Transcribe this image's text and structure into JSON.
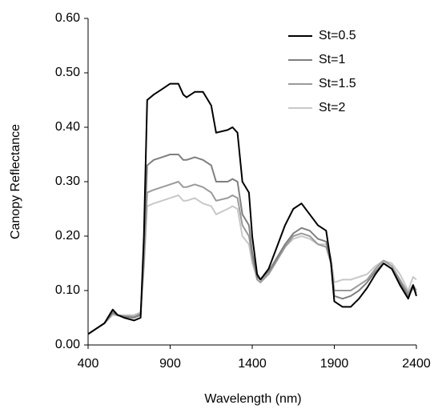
{
  "chart_data": {
    "type": "line",
    "xlabel": "Wavelength (nm)",
    "ylabel": "Canopy Reflectance",
    "x": [
      400,
      450,
      500,
      550,
      580,
      620,
      680,
      720,
      740,
      760,
      800,
      850,
      900,
      950,
      980,
      1000,
      1050,
      1100,
      1150,
      1180,
      1250,
      1280,
      1310,
      1340,
      1380,
      1400,
      1430,
      1450,
      1500,
      1550,
      1600,
      1650,
      1700,
      1750,
      1800,
      1850,
      1880,
      1900,
      1950,
      2000,
      2050,
      2100,
      2150,
      2200,
      2250,
      2300,
      2350,
      2380,
      2400
    ],
    "series": [
      {
        "name": "St=0.5",
        "color": "#000000",
        "values": [
          0.02,
          0.03,
          0.04,
          0.065,
          0.055,
          0.05,
          0.045,
          0.05,
          0.2,
          0.45,
          0.46,
          0.47,
          0.48,
          0.48,
          0.46,
          0.455,
          0.465,
          0.465,
          0.44,
          0.39,
          0.395,
          0.4,
          0.39,
          0.3,
          0.28,
          0.2,
          0.13,
          0.12,
          0.14,
          0.18,
          0.22,
          0.25,
          0.26,
          0.24,
          0.22,
          0.21,
          0.15,
          0.08,
          0.07,
          0.07,
          0.085,
          0.105,
          0.13,
          0.15,
          0.14,
          0.11,
          0.085,
          0.11,
          0.09
        ]
      },
      {
        "name": "St=1",
        "color": "#7f7f7f",
        "values": [
          0.02,
          0.03,
          0.04,
          0.06,
          0.055,
          0.052,
          0.05,
          0.055,
          0.17,
          0.33,
          0.34,
          0.345,
          0.35,
          0.35,
          0.34,
          0.34,
          0.345,
          0.34,
          0.33,
          0.3,
          0.3,
          0.305,
          0.3,
          0.24,
          0.22,
          0.17,
          0.125,
          0.12,
          0.135,
          0.16,
          0.185,
          0.205,
          0.215,
          0.21,
          0.195,
          0.19,
          0.15,
          0.09,
          0.085,
          0.09,
          0.1,
          0.115,
          0.135,
          0.15,
          0.14,
          0.115,
          0.09,
          0.105,
          0.095
        ]
      },
      {
        "name": "St=1.5",
        "color": "#9a9a9a",
        "values": [
          0.02,
          0.03,
          0.04,
          0.058,
          0.055,
          0.053,
          0.052,
          0.058,
          0.15,
          0.28,
          0.285,
          0.29,
          0.295,
          0.3,
          0.29,
          0.29,
          0.295,
          0.29,
          0.28,
          0.265,
          0.27,
          0.275,
          0.27,
          0.22,
          0.2,
          0.16,
          0.12,
          0.115,
          0.13,
          0.155,
          0.18,
          0.2,
          0.205,
          0.2,
          0.185,
          0.18,
          0.15,
          0.1,
          0.1,
          0.1,
          0.11,
          0.12,
          0.14,
          0.155,
          0.145,
          0.12,
          0.095,
          0.11,
          0.1
        ]
      },
      {
        "name": "St=2",
        "color": "#c8c8c8",
        "values": [
          0.02,
          0.03,
          0.04,
          0.055,
          0.054,
          0.055,
          0.055,
          0.06,
          0.14,
          0.255,
          0.26,
          0.265,
          0.27,
          0.275,
          0.265,
          0.265,
          0.27,
          0.26,
          0.255,
          0.24,
          0.25,
          0.255,
          0.25,
          0.2,
          0.185,
          0.15,
          0.125,
          0.12,
          0.13,
          0.155,
          0.18,
          0.195,
          0.2,
          0.195,
          0.185,
          0.185,
          0.16,
          0.115,
          0.12,
          0.12,
          0.125,
          0.13,
          0.145,
          0.155,
          0.15,
          0.13,
          0.1,
          0.125,
          0.12
        ]
      }
    ],
    "xlim": [
      400,
      2400
    ],
    "xticks": [
      400,
      900,
      1400,
      1900,
      2400
    ],
    "ylim": [
      0,
      0.6
    ],
    "yticks": [
      {
        "value": 0,
        "label": "0.00"
      },
      {
        "value": 0.1,
        "label": "0.10"
      },
      {
        "value": 0.2,
        "label": "0.20"
      },
      {
        "value": 0.3,
        "label": "0.30"
      },
      {
        "value": 0.4,
        "label": "0.40"
      },
      {
        "value": 0.5,
        "label": "0.50"
      },
      {
        "value": 0.6,
        "label": "0.60"
      }
    ],
    "grid": false,
    "legend": "top-right"
  }
}
